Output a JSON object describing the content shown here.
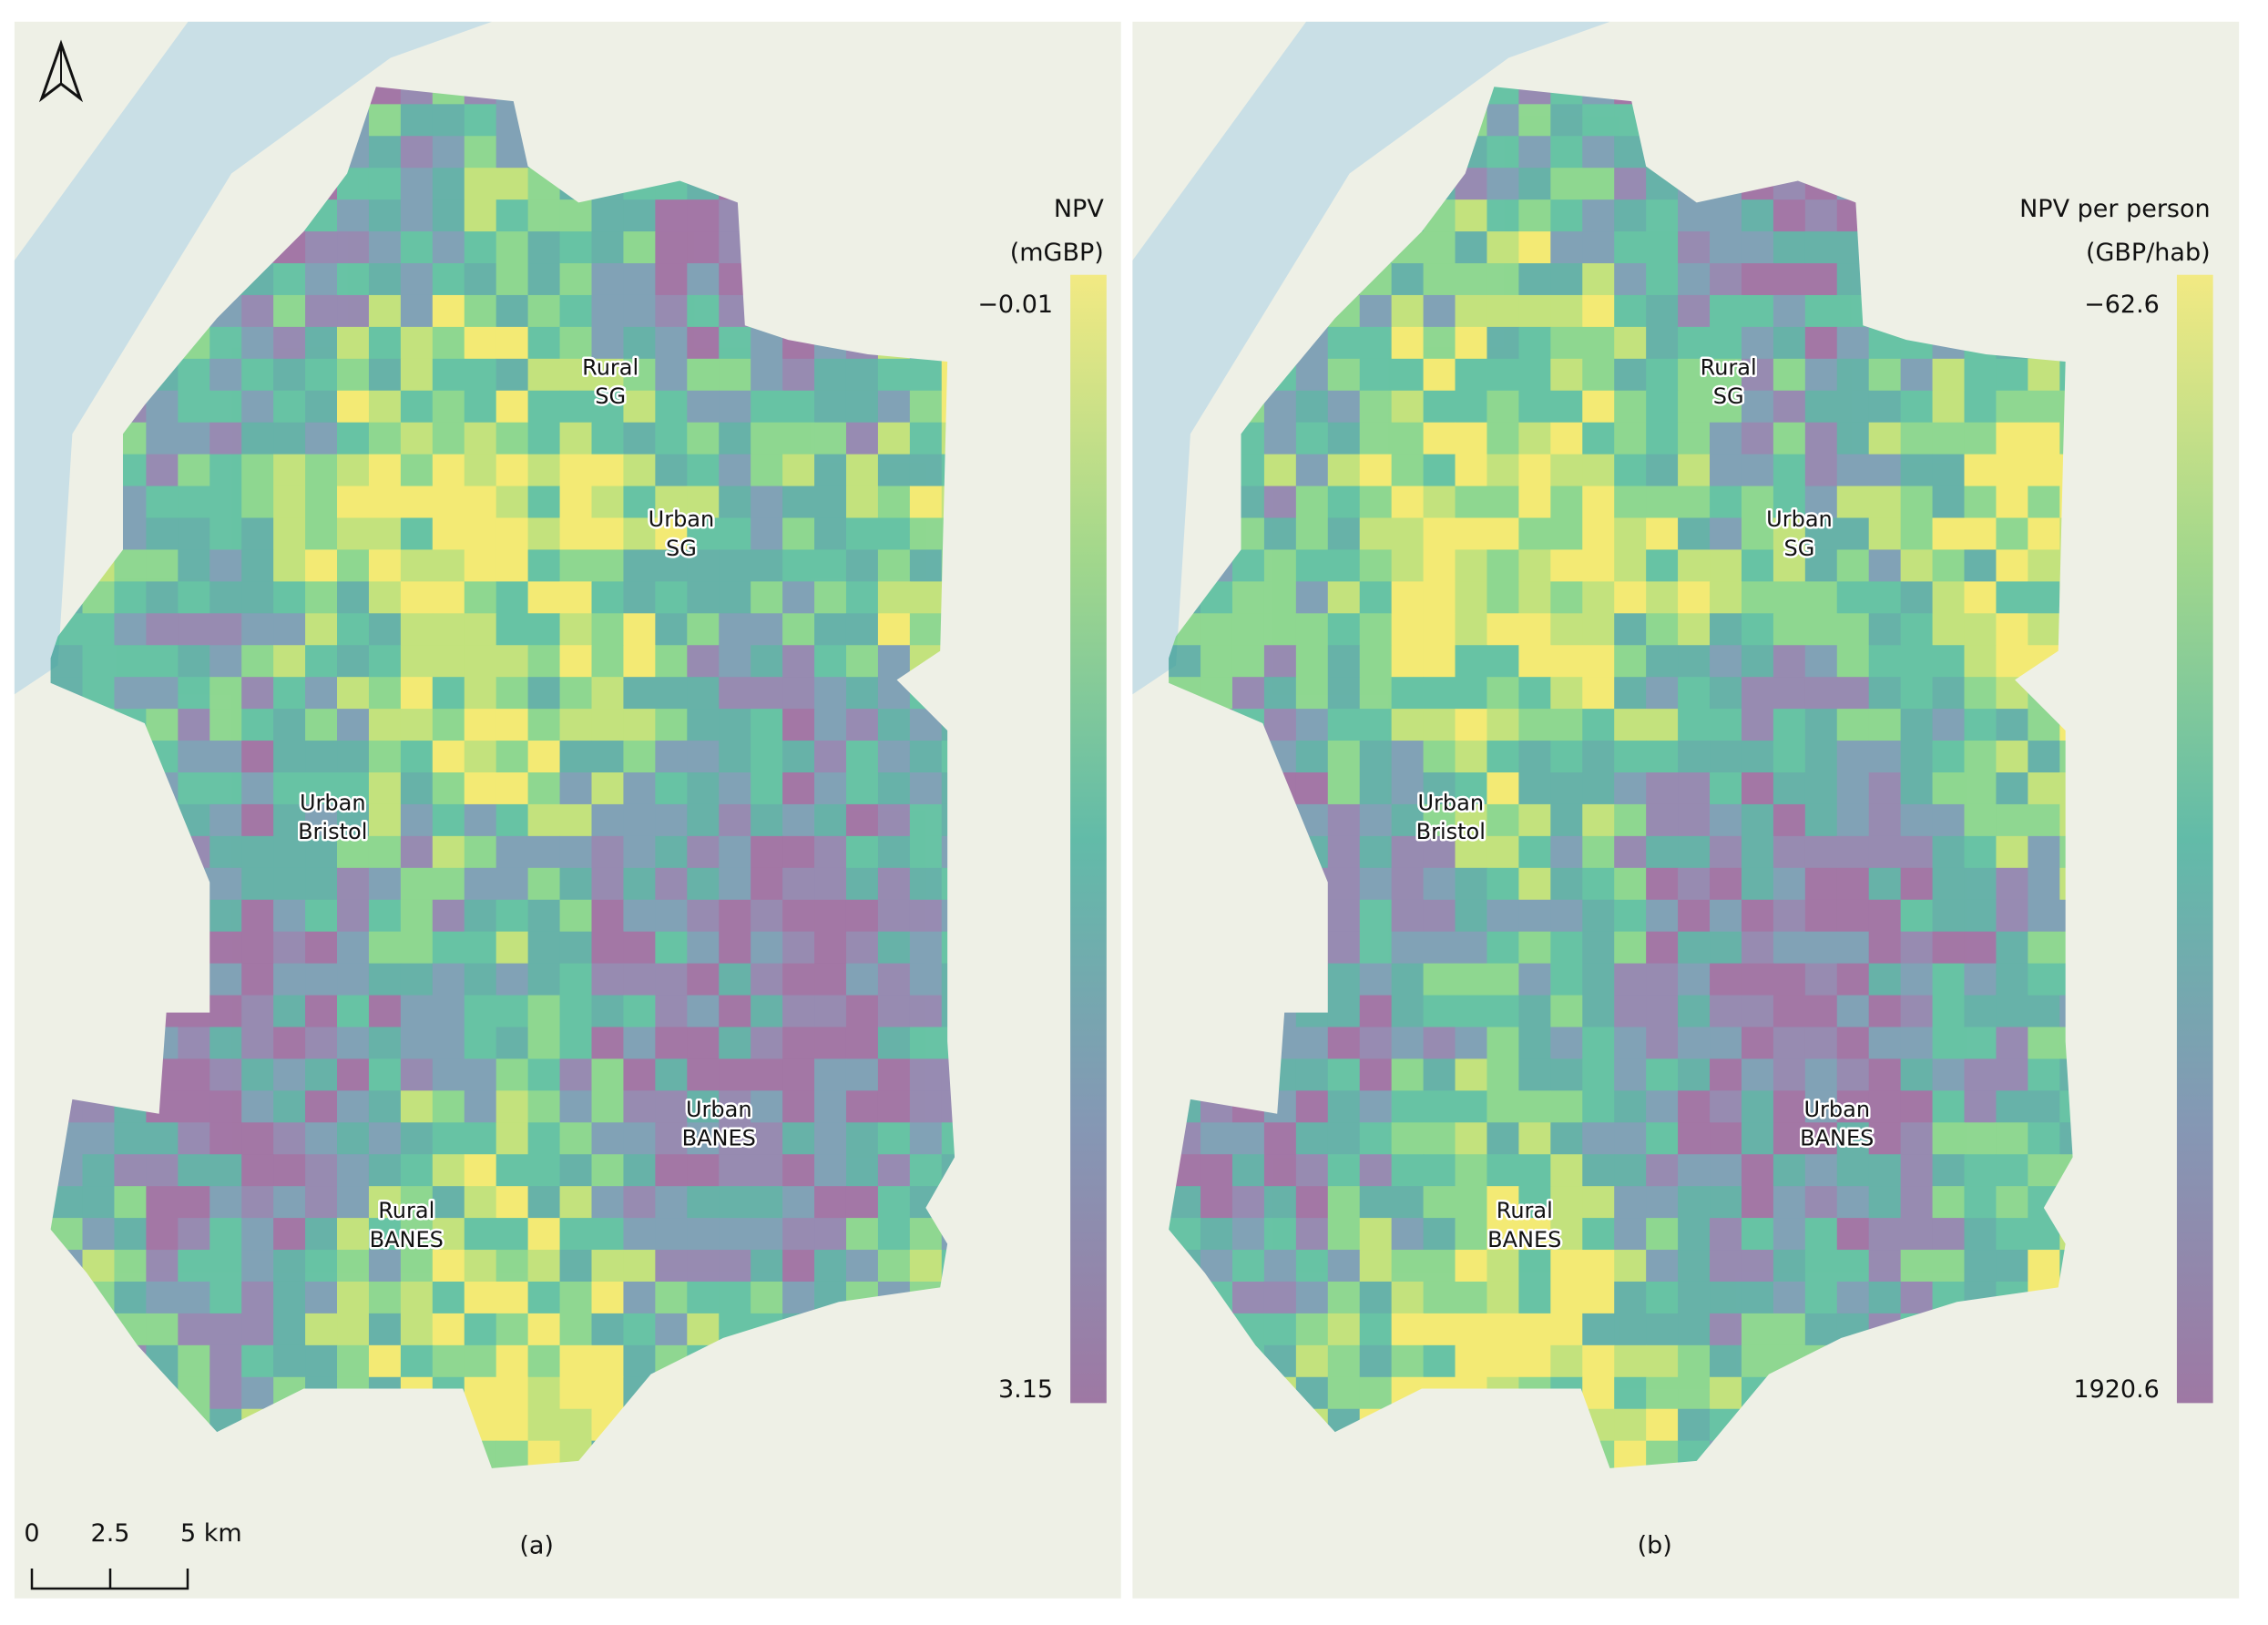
{
  "panels": [
    {
      "label": "(a)",
      "legend_title": [
        "NPV",
        "(mGBP)"
      ],
      "legend_top": "−0.01",
      "legend_bottom": "3.15",
      "regions": [
        [
          "Rural",
          "SG"
        ],
        [
          "Urban",
          "SG"
        ],
        [
          "Urban",
          "Bristol"
        ],
        [
          "Urban",
          "BANES"
        ],
        [
          "Rural",
          "BANES"
        ]
      ]
    },
    {
      "label": "(b)",
      "legend_title": [
        "NPV per person",
        "(GBP/hab)"
      ],
      "legend_top": "−62.6",
      "legend_bottom": "1920.6",
      "regions": [
        [
          "Rural",
          "SG"
        ],
        [
          "Urban",
          "SG"
        ],
        [
          "Urban",
          "Bristol"
        ],
        [
          "Urban",
          "BANES"
        ],
        [
          "Rural",
          "BANES"
        ]
      ]
    }
  ],
  "scale_bar": [
    "0",
    "2.5",
    "5 km"
  ]
}
